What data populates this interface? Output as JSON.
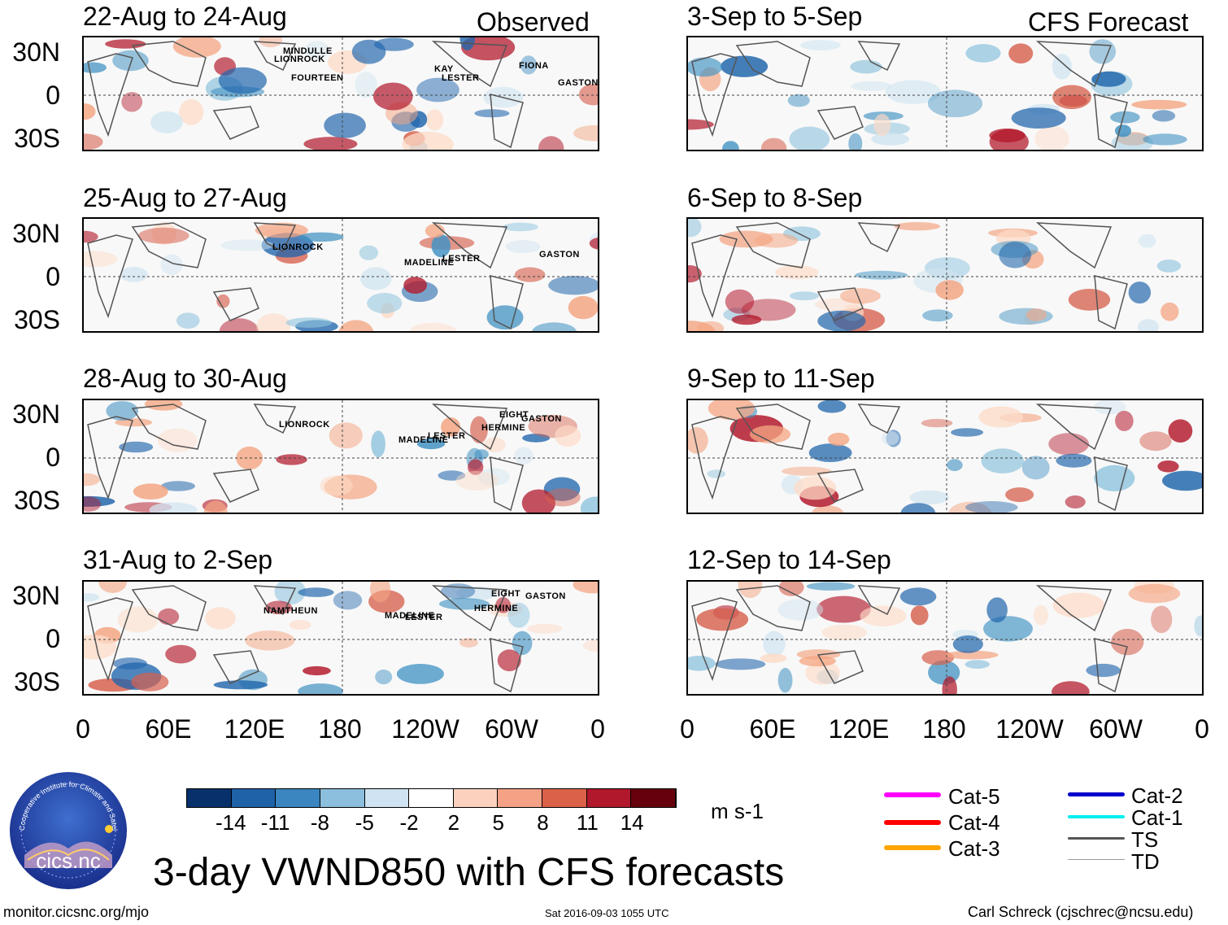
{
  "observed_label": "Observed",
  "forecast_label": "CFS Forecast",
  "lat_labels": [
    "30N",
    "0",
    "30S"
  ],
  "lon_labels": [
    "0",
    "60E",
    "120E",
    "180",
    "120W",
    "60W",
    "0"
  ],
  "panels_left": [
    {
      "title": "22-Aug to 24-Aug",
      "storms": [
        "MINDULLE",
        "LIONROCK",
        "FOURTEEN",
        "KAY",
        "LESTER",
        "FIONA",
        "GASTON"
      ]
    },
    {
      "title": "25-Aug to 27-Aug",
      "storms": [
        "LIONROCK",
        "MADELINE",
        "LESTER",
        "GASTON"
      ]
    },
    {
      "title": "28-Aug to 30-Aug",
      "storms": [
        "LIONROCK",
        "MADELINE",
        "LESTER",
        "EIGHT",
        "GASTON",
        "HERMINE"
      ]
    },
    {
      "title": "31-Aug to 2-Sep",
      "storms": [
        "NAMTHEUN",
        "MADELINE",
        "LESTER",
        "EIGHT",
        "GASTON",
        "HERMINE"
      ]
    }
  ],
  "panels_right": [
    {
      "title": "3-Sep to 5-Sep"
    },
    {
      "title": "6-Sep to 8-Sep"
    },
    {
      "title": "9-Sep to 11-Sep"
    },
    {
      "title": "12-Sep to 14-Sep"
    }
  ],
  "colorbar": {
    "ticks": [
      "-14",
      "-11",
      "-8",
      "-5",
      "-2",
      "2",
      "5",
      "8",
      "11",
      "14"
    ],
    "colors": [
      "#08306b",
      "#1f62a8",
      "#3b86c0",
      "#8cbfdd",
      "#cfe3f2",
      "#ffffff",
      "#fcd2bf",
      "#f4a185",
      "#dc6149",
      "#b2182b",
      "#67000d"
    ],
    "units": "m s-1"
  },
  "legend": {
    "items": [
      {
        "label": "Cat-5",
        "color": "#ff00ff"
      },
      {
        "label": "Cat-4",
        "color": "#ff0000"
      },
      {
        "label": "Cat-3",
        "color": "#ffa500"
      },
      {
        "label": "Cat-2",
        "color": "#0000cc"
      },
      {
        "label": "Cat-1",
        "color": "#00eeee"
      },
      {
        "label": "TS",
        "color": "#555555"
      },
      {
        "label": "TD",
        "color": "#999999"
      }
    ]
  },
  "logo": {
    "text": "cics.nc",
    "ring_text": "Cooperative Institute for Climate and Satellites"
  },
  "main_title": "3-day VWND850 with CFS forecasts",
  "footer": {
    "website": "monitor.cicsnc.org/mjo",
    "timestamp": "Sat 2016-09-03 1055 UTC",
    "author": "Carl Schreck (cjschrec@ncsu.edu)"
  }
}
